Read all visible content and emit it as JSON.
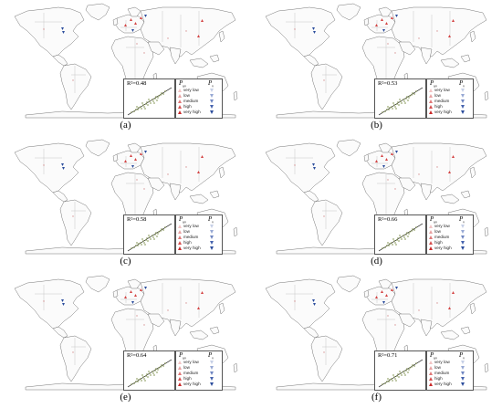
{
  "panels": [
    {
      "label": "(a)",
      "r2": "R²=0.48"
    },
    {
      "label": "(b)",
      "r2": "R²=0.53"
    },
    {
      "label": "(c)",
      "r2": "R²=0.58"
    },
    {
      "label": "(d)",
      "r2": "R²=0.66"
    },
    {
      "label": "(e)",
      "r2": "R²=0.64"
    },
    {
      "label": "(f)",
      "r2": "R²=0.71"
    }
  ],
  "legend": {
    "header_left": "P_uv",
    "header_right": "P_v",
    "classes": [
      "very low",
      "low",
      "medium",
      "high",
      "very high"
    ]
  },
  "colors": {
    "outline": "#555555",
    "point_overestimate": "#d44444",
    "point_underestimate": "#2b4c9c",
    "scatter": "#8a9a5b"
  }
}
